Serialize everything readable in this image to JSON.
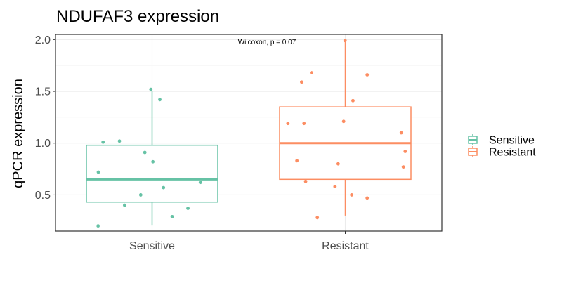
{
  "chart_data": {
    "type": "box",
    "title": "NDUFAF3 expression",
    "xlabel": "",
    "ylabel": "qPCR expression",
    "ylim": [
      0.15,
      2.05
    ],
    "yticks": [
      0.5,
      1.0,
      1.5,
      2.0
    ],
    "ytick_labels": [
      "0.5",
      "1.0",
      "1.5",
      "2.0"
    ],
    "grid": true,
    "annotation": "Wilcoxon, p = 0.07",
    "legend_position": "right",
    "categories": [
      "Sensitive",
      "Resistant"
    ],
    "series": [
      {
        "name": "Sensitive",
        "color": "#66c2a5",
        "box": {
          "min": 0.21,
          "q1": 0.43,
          "median": 0.65,
          "q3": 0.98,
          "max": 1.5
        },
        "points": [
          1.52,
          1.42,
          1.01,
          1.02,
          0.91,
          0.82,
          0.72,
          0.62,
          0.57,
          0.5,
          0.4,
          0.37,
          0.29,
          0.2
        ]
      },
      {
        "name": "Resistant",
        "color": "#fc8d62",
        "box": {
          "min": 0.3,
          "q1": 0.65,
          "median": 1.0,
          "q3": 1.35,
          "max": 2.0
        },
        "points": [
          1.99,
          1.68,
          1.66,
          1.59,
          1.41,
          1.21,
          1.19,
          1.19,
          1.1,
          0.92,
          0.83,
          0.8,
          0.77,
          0.63,
          0.58,
          0.5,
          0.47,
          0.28
        ]
      }
    ]
  }
}
